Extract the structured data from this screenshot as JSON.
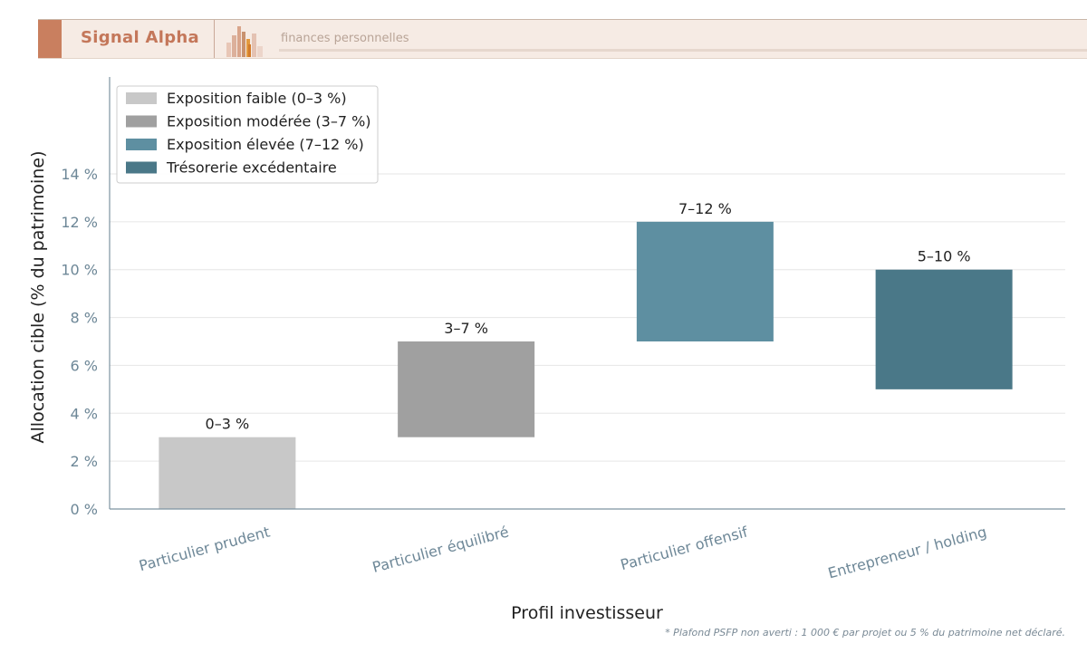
{
  "brand": {
    "name": "Signal Alpha",
    "tagline": "finances personnelles"
  },
  "footnote": "* Plafond PSFP non averti : 1 000 € par projet ou 5 % du patrimoine net déclaré.",
  "chart_data": {
    "type": "bar",
    "title": "",
    "xlabel": "Profil investisseur",
    "ylabel": "Allocation cible (% du patrimoine)",
    "ylim": [
      0,
      15
    ],
    "yticks": [
      0,
      2,
      4,
      6,
      8,
      10,
      12,
      14
    ],
    "ytick_suffix": " %",
    "grid": true,
    "legend_position": "top-left",
    "categories": [
      "Particulier prudent",
      "Particulier équilibré",
      "Particulier offensif",
      "Entrepreneur / holding"
    ],
    "bars": [
      {
        "category": "Particulier prudent",
        "low": 0,
        "high": 3,
        "label": "0–3 %",
        "series": 0
      },
      {
        "category": "Particulier équilibré",
        "low": 3,
        "high": 7,
        "label": "3–7 %",
        "series": 1
      },
      {
        "category": "Particulier offensif",
        "low": 7,
        "high": 12,
        "label": "7–12 %",
        "series": 2
      },
      {
        "category": "Entrepreneur / holding",
        "low": 5,
        "high": 10,
        "label": "5–10 %",
        "series": 3
      }
    ],
    "series": [
      {
        "name": "Exposition faible (0–3 %)",
        "color": "#c8c8c8"
      },
      {
        "name": "Exposition modérée (3–7 %)",
        "color": "#a0a0a0"
      },
      {
        "name": "Exposition élevée (7–12 %)",
        "color": "#5e8fa1"
      },
      {
        "name": "Trésorerie excédentaire",
        "color": "#4a7888"
      }
    ]
  }
}
